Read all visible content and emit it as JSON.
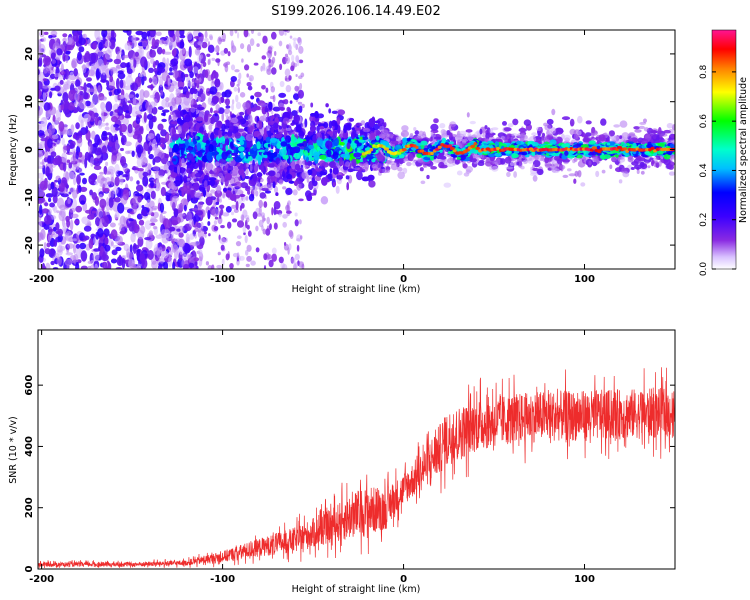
{
  "title": "S199.2026.106.14.49.E02",
  "chart_data": [
    {
      "type": "heatmap",
      "name": "spectrogram",
      "xlabel": "Height of straight line (km)",
      "ylabel": "Frequency (Hz)",
      "xlim": [
        -202,
        150
      ],
      "ylim": [
        -25,
        25
      ],
      "xticks": [
        -200,
        -100,
        0,
        100
      ],
      "xtick_labels": [
        "-200",
        "-100",
        "0",
        "100"
      ],
      "yticks": [
        -20,
        -10,
        0,
        10,
        20
      ],
      "ytick_labels": [
        "-20",
        "-10",
        "0",
        "10",
        "20"
      ],
      "colorbar": {
        "label": "Normalized spectral amplitude",
        "range": [
          0.0,
          0.97
        ],
        "ticks": [
          0.0,
          0.2,
          0.4,
          0.6,
          0.8
        ],
        "tick_labels": [
          "0.0",
          "0.2",
          "0.4",
          "0.6",
          "0.8"
        ],
        "colors": [
          "#ffffff",
          "#d9c2ff",
          "#8a2be2",
          "#3b00ff",
          "#0000ff",
          "#00bfff",
          "#00ffcc",
          "#00ff00",
          "#ffff00",
          "#ff8000",
          "#ff0000",
          "#ff1493"
        ]
      },
      "description_features": {
        "broadband_noise_extent_km": [
          -202,
          -110
        ],
        "transition_zone_km": [
          -125,
          -15
        ],
        "narrow_line_start_km": -15,
        "line_frequency_hz": 0
      }
    },
    {
      "type": "line",
      "name": "snr",
      "xlabel": "Height of straight line (km)",
      "ylabel": "SNR (10 * v/v)",
      "xlim": [
        -202,
        150
      ],
      "ylim": [
        0,
        780
      ],
      "xticks": [
        -200,
        -100,
        0,
        100
      ],
      "xtick_labels": [
        "-200",
        "-100",
        "0",
        "100"
      ],
      "yticks": [
        0,
        200,
        400,
        600
      ],
      "ytick_labels": [
        "0",
        "200",
        "400",
        "600"
      ],
      "color": "#ee2c2c",
      "envelope": {
        "x": [
          -202,
          -150,
          -120,
          -100,
          -80,
          -60,
          -40,
          -30,
          -20,
          -10,
          0,
          10,
          20,
          25,
          30,
          40,
          60,
          80,
          100,
          120,
          150
        ],
        "mean": [
          15,
          15,
          20,
          40,
          70,
          95,
          140,
          170,
          190,
          195,
          260,
          320,
          390,
          430,
          440,
          470,
          490,
          500,
          500,
          505,
          510
        ],
        "noise": [
          10,
          10,
          12,
          25,
          40,
          55,
          75,
          100,
          110,
          90,
          70,
          85,
          110,
          120,
          120,
          115,
          110,
          110,
          110,
          110,
          110
        ]
      }
    }
  ]
}
